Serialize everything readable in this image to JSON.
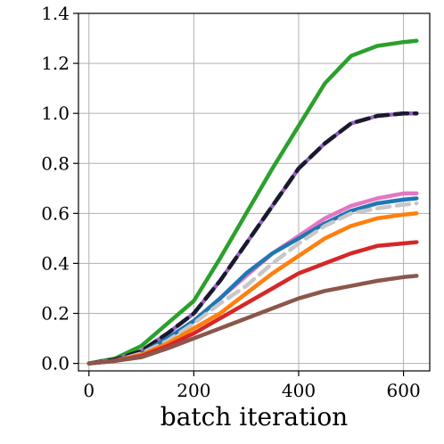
{
  "chart_data": {
    "type": "line",
    "xlabel": "batch iteration",
    "ylabel": "",
    "title": "",
    "xlim": [
      -20,
      650
    ],
    "ylim": [
      -0.03,
      1.4
    ],
    "xticks": [
      0,
      200,
      400,
      600
    ],
    "xtick_labels": [
      "0",
      "200",
      "400",
      "600"
    ],
    "yticks": [
      0.0,
      0.2,
      0.4,
      0.6,
      0.8,
      1.0,
      1.2,
      1.4
    ],
    "ytick_labels": [
      "0.0",
      "0.2",
      "0.4",
      "0.6",
      "0.8",
      "1.0",
      "1.2",
      "1.4"
    ],
    "grid": true,
    "x": [
      0,
      50,
      100,
      150,
      200,
      250,
      300,
      350,
      400,
      450,
      500,
      550,
      600,
      625
    ],
    "series": [
      {
        "color": "#2ca02c",
        "style": "solid",
        "values": [
          0.0,
          0.02,
          0.07,
          0.16,
          0.25,
          0.42,
          0.6,
          0.78,
          0.95,
          1.12,
          1.23,
          1.27,
          1.285,
          1.29
        ]
      },
      {
        "color": "#9467bd",
        "style": "solid",
        "values": [
          0.0,
          0.015,
          0.05,
          0.12,
          0.2,
          0.33,
          0.48,
          0.63,
          0.78,
          0.88,
          0.96,
          0.99,
          1.0,
          1.0
        ]
      },
      {
        "color": "#1a1a2e",
        "style": "dashed",
        "values": [
          0.0,
          0.015,
          0.05,
          0.12,
          0.2,
          0.33,
          0.48,
          0.63,
          0.78,
          0.88,
          0.96,
          0.99,
          1.0,
          1.0
        ]
      },
      {
        "color": "#e377c2",
        "style": "solid",
        "values": [
          0.0,
          0.01,
          0.04,
          0.1,
          0.17,
          0.26,
          0.35,
          0.44,
          0.51,
          0.58,
          0.63,
          0.66,
          0.68,
          0.68
        ]
      },
      {
        "color": "#1f77b4",
        "style": "solid",
        "values": [
          0.0,
          0.01,
          0.04,
          0.1,
          0.17,
          0.26,
          0.36,
          0.44,
          0.5,
          0.56,
          0.61,
          0.64,
          0.655,
          0.66
        ]
      },
      {
        "color": "#c7c7c7",
        "style": "dashed",
        "values": [
          0.0,
          0.01,
          0.04,
          0.09,
          0.16,
          0.24,
          0.31,
          0.4,
          0.48,
          0.55,
          0.6,
          0.62,
          0.635,
          0.64
        ]
      },
      {
        "color": "#ff7f0e",
        "style": "solid",
        "values": [
          0.0,
          0.01,
          0.035,
          0.08,
          0.14,
          0.2,
          0.28,
          0.36,
          0.43,
          0.5,
          0.55,
          0.58,
          0.595,
          0.6
        ]
      },
      {
        "color": "#d62728",
        "style": "solid",
        "values": [
          0.0,
          0.01,
          0.03,
          0.07,
          0.12,
          0.18,
          0.24,
          0.3,
          0.36,
          0.4,
          0.44,
          0.47,
          0.48,
          0.485
        ]
      },
      {
        "color": "#8c564b",
        "style": "solid",
        "values": [
          0.0,
          0.01,
          0.025,
          0.06,
          0.1,
          0.14,
          0.18,
          0.22,
          0.26,
          0.29,
          0.31,
          0.33,
          0.345,
          0.35
        ]
      }
    ]
  }
}
